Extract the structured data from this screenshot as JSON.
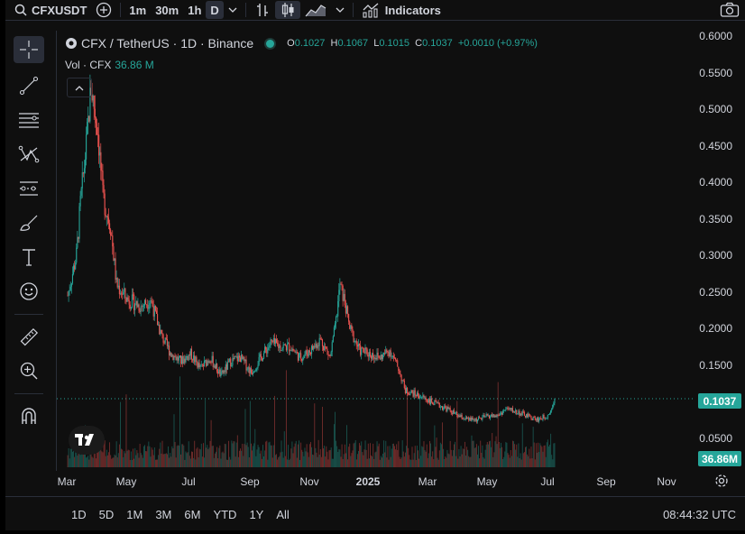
{
  "toolbar": {
    "symbol": "CFXUSDT",
    "intervals": [
      "1m",
      "30m",
      "1h",
      "D"
    ],
    "indicators_label": "Indicators"
  },
  "legend": {
    "title": "CFX / TetherUS · 1D · Binance",
    "open_label": "O",
    "open": "0.1027",
    "high_label": "H",
    "high": "0.1067",
    "low_label": "L",
    "low": "0.1015",
    "close_label": "C",
    "close": "0.1037",
    "change": "+0.0010 (+0.97%)",
    "vol_label": "Vol · CFX",
    "vol_value": "36.86 M"
  },
  "price_axis": [
    "0.6000",
    "0.5500",
    "0.5000",
    "0.4500",
    "0.4000",
    "0.3500",
    "0.3000",
    "0.2500",
    "0.2000",
    "0.1500",
    "0.0500"
  ],
  "current_price": "0.1037",
  "current_volume": "36.86M",
  "time_axis": [
    "Mar",
    "May",
    "Jul",
    "Sep",
    "Nov",
    "2025",
    "Mar",
    "May",
    "Jul",
    "Sep",
    "Nov"
  ],
  "ranges": [
    "1D",
    "5D",
    "1M",
    "3M",
    "6M",
    "YTD",
    "1Y",
    "All"
  ],
  "clock": "08:44:32 UTC",
  "colors": {
    "up": "#26a69a",
    "down": "#ef5350",
    "background": "#0f0f0f"
  },
  "chart_data": {
    "type": "line",
    "title": "",
    "y_range": [
      0,
      0.6
    ],
    "y_ticks": [
      0.6,
      0.55,
      0.5,
      0.45,
      0.4,
      0.35,
      0.3,
      0.25,
      0.2,
      0.15,
      0.05
    ],
    "x_labels": [
      "Mar",
      "May",
      "Jul",
      "Sep",
      "Nov",
      "2025",
      "Mar",
      "May",
      "Jul",
      "Sep",
      "Nov"
    ],
    "series": [
      {
        "x": [
          "2024-03-01",
          "2024-03-10",
          "2024-03-14",
          "2024-03-20",
          "2024-03-25",
          "2024-04-01",
          "2024-04-06",
          "2024-04-14",
          "2024-04-20",
          "2024-05-01",
          "2024-05-15",
          "2024-05-25",
          "2024-06-05",
          "2024-06-15",
          "2024-06-25",
          "2024-07-05",
          "2024-07-15",
          "2024-07-25",
          "2024-08-05",
          "2024-08-15",
          "2024-08-25",
          "2024-09-05",
          "2024-09-15",
          "2024-09-25",
          "2024-10-05",
          "2024-10-15",
          "2024-10-25",
          "2024-11-05",
          "2024-11-15",
          "2024-11-25",
          "2024-12-01",
          "2024-12-05",
          "2024-12-10",
          "2024-12-15",
          "2024-12-25",
          "2025-01-05",
          "2025-01-15",
          "2025-01-25",
          "2025-02-03",
          "2025-02-10",
          "2025-02-20",
          "2025-03-01",
          "2025-03-15",
          "2025-03-25",
          "2025-04-05",
          "2025-04-15",
          "2025-04-25",
          "2025-05-05",
          "2025-05-15",
          "2025-05-25",
          "2025-06-05",
          "2025-06-15",
          "2025-06-25",
          "2025-07-05",
          "2025-07-10",
          "2025-07-13"
        ],
        "values": [
          0.245,
          0.3,
          0.37,
          0.45,
          0.53,
          0.47,
          0.38,
          0.34,
          0.26,
          0.24,
          0.23,
          0.24,
          0.19,
          0.165,
          0.155,
          0.165,
          0.145,
          0.16,
          0.135,
          0.155,
          0.16,
          0.14,
          0.16,
          0.18,
          0.175,
          0.175,
          0.16,
          0.17,
          0.185,
          0.16,
          0.21,
          0.26,
          0.235,
          0.2,
          0.17,
          0.165,
          0.16,
          0.17,
          0.145,
          0.115,
          0.11,
          0.105,
          0.095,
          0.09,
          0.08,
          0.075,
          0.075,
          0.08,
          0.08,
          0.09,
          0.085,
          0.08,
          0.075,
          0.08,
          0.09,
          0.1037
        ]
      }
    ]
  }
}
